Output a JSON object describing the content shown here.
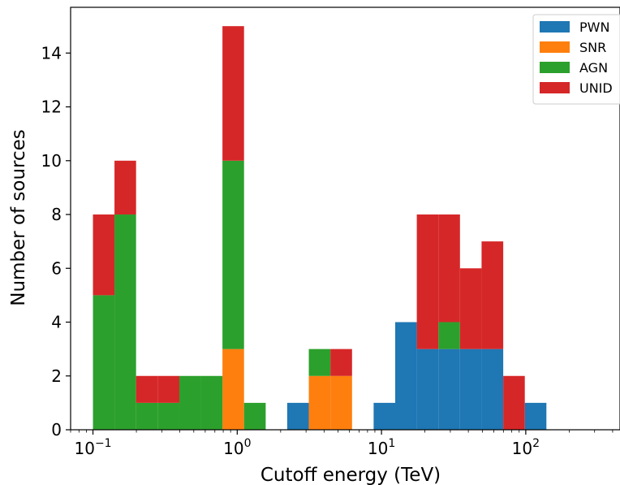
{
  "chart_data": {
    "type": "bar",
    "stacked": true,
    "bar_style": "histogram-stepfilled",
    "xscale": "log",
    "xlabel": "Cutoff energy (TeV)",
    "ylabel": "Number of sources",
    "xlim": [
      0.07,
      450
    ],
    "ylim": [
      0,
      15.7
    ],
    "x_ticks": [
      {
        "value": 0.1,
        "base": "10",
        "exp": "−1"
      },
      {
        "value": 1,
        "base": "10",
        "exp": "0"
      },
      {
        "value": 10,
        "base": "10",
        "exp": "1"
      },
      {
        "value": 100,
        "base": "10",
        "exp": "2"
      }
    ],
    "y_ticks": [
      0,
      2,
      4,
      6,
      8,
      10,
      12,
      14
    ],
    "bin_edges": [
      0.1,
      0.141,
      0.199,
      0.281,
      0.397,
      0.56,
      0.79,
      1.115,
      1.575,
      2.22,
      3.135,
      4.425,
      6.25,
      8.82,
      12.45,
      17.57,
      24.8,
      35.0,
      49.4,
      69.8,
      98.5,
      139.0,
      196.0
    ],
    "series": [
      {
        "name": "PWN",
        "color": "#1f77b4",
        "values": [
          0,
          0,
          0,
          0,
          0,
          0,
          0,
          0,
          0,
          1,
          0,
          0,
          0,
          1,
          4,
          3,
          3,
          3,
          3,
          0,
          1,
          0
        ]
      },
      {
        "name": "SNR",
        "color": "#ff7f0e",
        "values": [
          0,
          0,
          0,
          0,
          0,
          0,
          3,
          0,
          0,
          0,
          2,
          2,
          0,
          0,
          0,
          0,
          0,
          0,
          0,
          0,
          0,
          0
        ]
      },
      {
        "name": "AGN",
        "color": "#2ca02c",
        "values": [
          5,
          8,
          1,
          1,
          2,
          2,
          7,
          1,
          0,
          0,
          1,
          0,
          0,
          0,
          0,
          0,
          1,
          0,
          0,
          0,
          0,
          0
        ]
      },
      {
        "name": "UNID",
        "color": "#d62728",
        "values": [
          3,
          2,
          1,
          1,
          0,
          0,
          5,
          0,
          0,
          0,
          0,
          1,
          0,
          0,
          0,
          5,
          4,
          3,
          4,
          2,
          0,
          0
        ]
      }
    ],
    "legend": {
      "position": "top-right"
    },
    "grid": false
  }
}
